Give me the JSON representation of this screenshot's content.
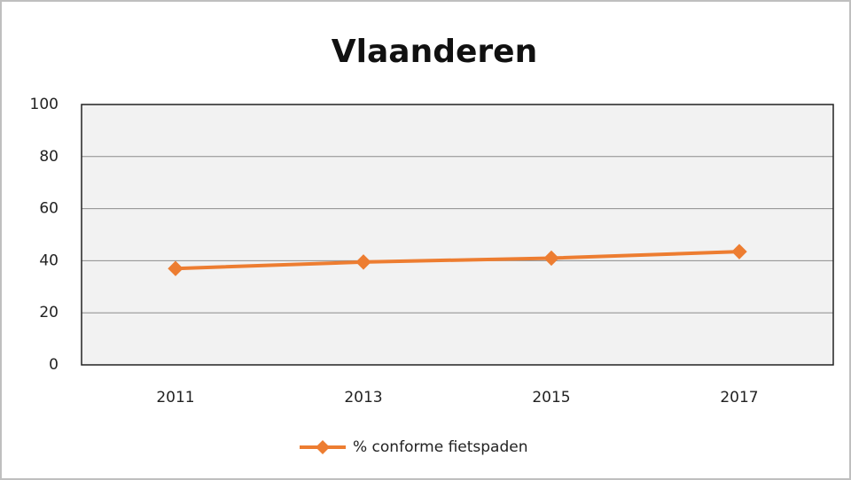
{
  "chart_data": {
    "type": "line",
    "title": "Vlaanderen",
    "categories": [
      "2011",
      "2013",
      "2015",
      "2017"
    ],
    "series": [
      {
        "name": "% conforme fietspaden",
        "color": "#ed7d31",
        "values": [
          37,
          39.5,
          41,
          43.5
        ]
      }
    ],
    "ylim": [
      0,
      100
    ],
    "yticks": [
      0,
      20,
      40,
      60,
      80,
      100
    ],
    "grid": true,
    "legend": "bottom"
  }
}
